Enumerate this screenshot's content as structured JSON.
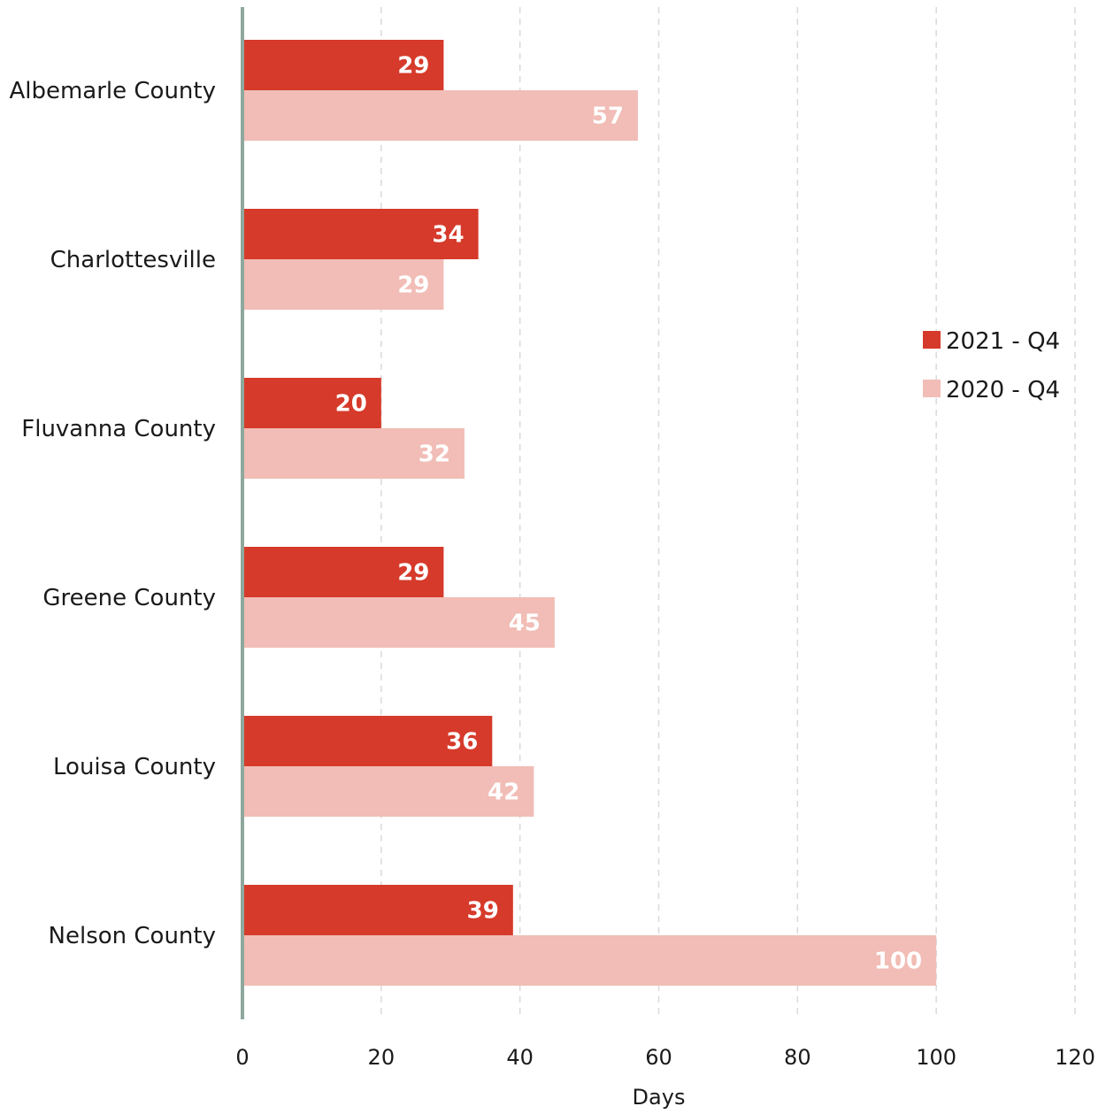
{
  "chart_data": {
    "type": "bar",
    "orientation": "horizontal",
    "categories": [
      "Albemarle County",
      "Charlottesville",
      "Fluvanna County",
      "Greene County",
      "Louisa County",
      "Nelson County"
    ],
    "series": [
      {
        "name": "2021 - Q4",
        "color": "#d63a2a",
        "values": [
          29,
          34,
          20,
          29,
          36,
          39
        ]
      },
      {
        "name": "2020 - Q4",
        "color": "#f1bdb6",
        "values": [
          57,
          29,
          32,
          45,
          42,
          100
        ]
      }
    ],
    "data_labels": [
      [
        "29",
        "34",
        "20",
        "29",
        "36",
        "39"
      ],
      [
        "57",
        "29",
        "32",
        "45",
        "42",
        "100"
      ]
    ],
    "xlabel": "Days",
    "ylabel": "",
    "xlim": [
      0,
      120
    ],
    "x_ticks": [
      "0",
      "20",
      "40",
      "60",
      "80",
      "100",
      "120"
    ],
    "grid": "vertical dashed",
    "legend_position": "right",
    "axis_color": "#8fa89d"
  }
}
